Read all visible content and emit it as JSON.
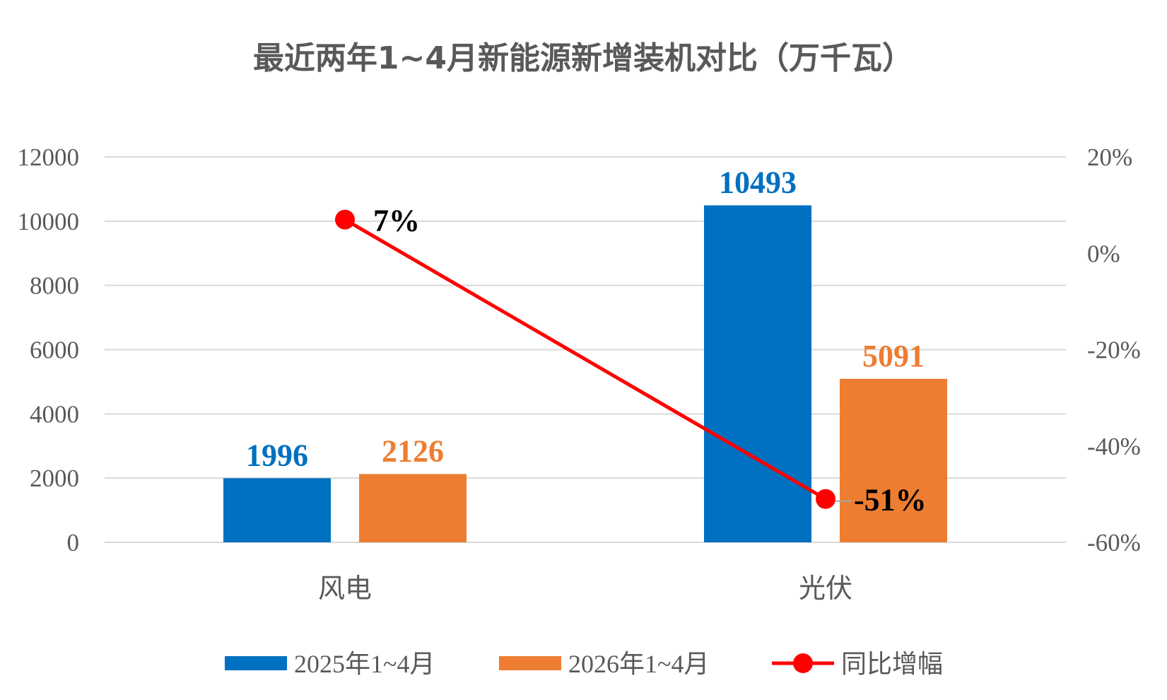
{
  "chart_data": {
    "type": "bar",
    "title": "最近两年1~4月新能源新增装机对比（万千瓦）",
    "categories": [
      "风电",
      "光伏"
    ],
    "series": [
      {
        "name": "2025年1~4月",
        "type": "bar",
        "axis": "left",
        "color": "#0070C0",
        "values": [
          1996,
          10493
        ],
        "labels": [
          "1996",
          "10493"
        ]
      },
      {
        "name": "2026年1~4月",
        "type": "bar",
        "axis": "left",
        "color": "#ED7D31",
        "values": [
          2126,
          5091
        ],
        "labels": [
          "2126",
          "5091"
        ]
      },
      {
        "name": "同比增幅",
        "type": "line",
        "axis": "right",
        "color": "#FF0000",
        "values": [
          7,
          -51
        ],
        "labels": [
          "7%",
          "-51%"
        ]
      }
    ],
    "y_left": {
      "ylim": [
        0,
        12000
      ],
      "ticks": [
        "0",
        "2000",
        "4000",
        "6000",
        "8000",
        "10000",
        "12000"
      ]
    },
    "y_right": {
      "ylim": [
        -60,
        20
      ],
      "ticks": [
        "-60%",
        "-40%",
        "-20%",
        "0%",
        "20%"
      ]
    },
    "grid": true,
    "legend": "bottom"
  }
}
